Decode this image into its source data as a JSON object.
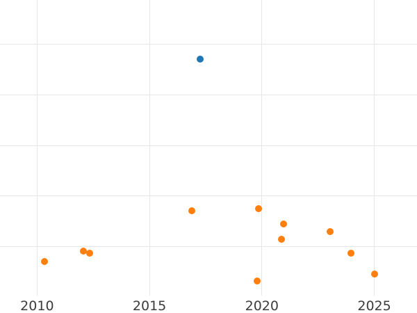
{
  "window": {
    "background_color": "#ffffff"
  },
  "chart_data": {
    "type": "scatter",
    "title": "",
    "subtitle": "",
    "xlabel": "",
    "ylabel": "",
    "grid": true,
    "legend": "none",
    "gridline_color": "#e6e6e6",
    "tick_label_color": "#3c3c3c",
    "marker_diameter_px": 10,
    "x_ticks": [
      2010,
      2015,
      2020,
      2025
    ],
    "x_tick_labels": [
      "2010",
      "2015",
      "2020",
      "2025"
    ],
    "xlim": [
      2008.35,
      2026.9
    ],
    "ylim": [
      -0.32,
      5.88
    ],
    "y_gridline_values": [
      1,
      2,
      3,
      4,
      5
    ],
    "y_axis_note": "y-axis tick labels are cropped out of view; y values given in gridline units (1 unit = one gridline spacing, 0 = one spacing below lowest visible gridline)",
    "series": [
      {
        "name": "blue-series",
        "color": "#1f77b4",
        "points": [
          {
            "x": 2017.24,
            "y": 4.71
          }
        ]
      },
      {
        "name": "orange-series",
        "color": "#ff7f0e",
        "points": [
          {
            "x": 2010.34,
            "y": 0.7
          },
          {
            "x": 2012.07,
            "y": 0.91
          },
          {
            "x": 2012.35,
            "y": 0.86
          },
          {
            "x": 2016.89,
            "y": 1.7
          },
          {
            "x": 2019.8,
            "y": 0.32
          },
          {
            "x": 2019.85,
            "y": 1.75
          },
          {
            "x": 2020.87,
            "y": 1.14
          },
          {
            "x": 2020.95,
            "y": 1.45
          },
          {
            "x": 2023.04,
            "y": 1.29
          },
          {
            "x": 2023.96,
            "y": 0.87
          },
          {
            "x": 2025.02,
            "y": 0.45
          }
        ]
      }
    ]
  }
}
